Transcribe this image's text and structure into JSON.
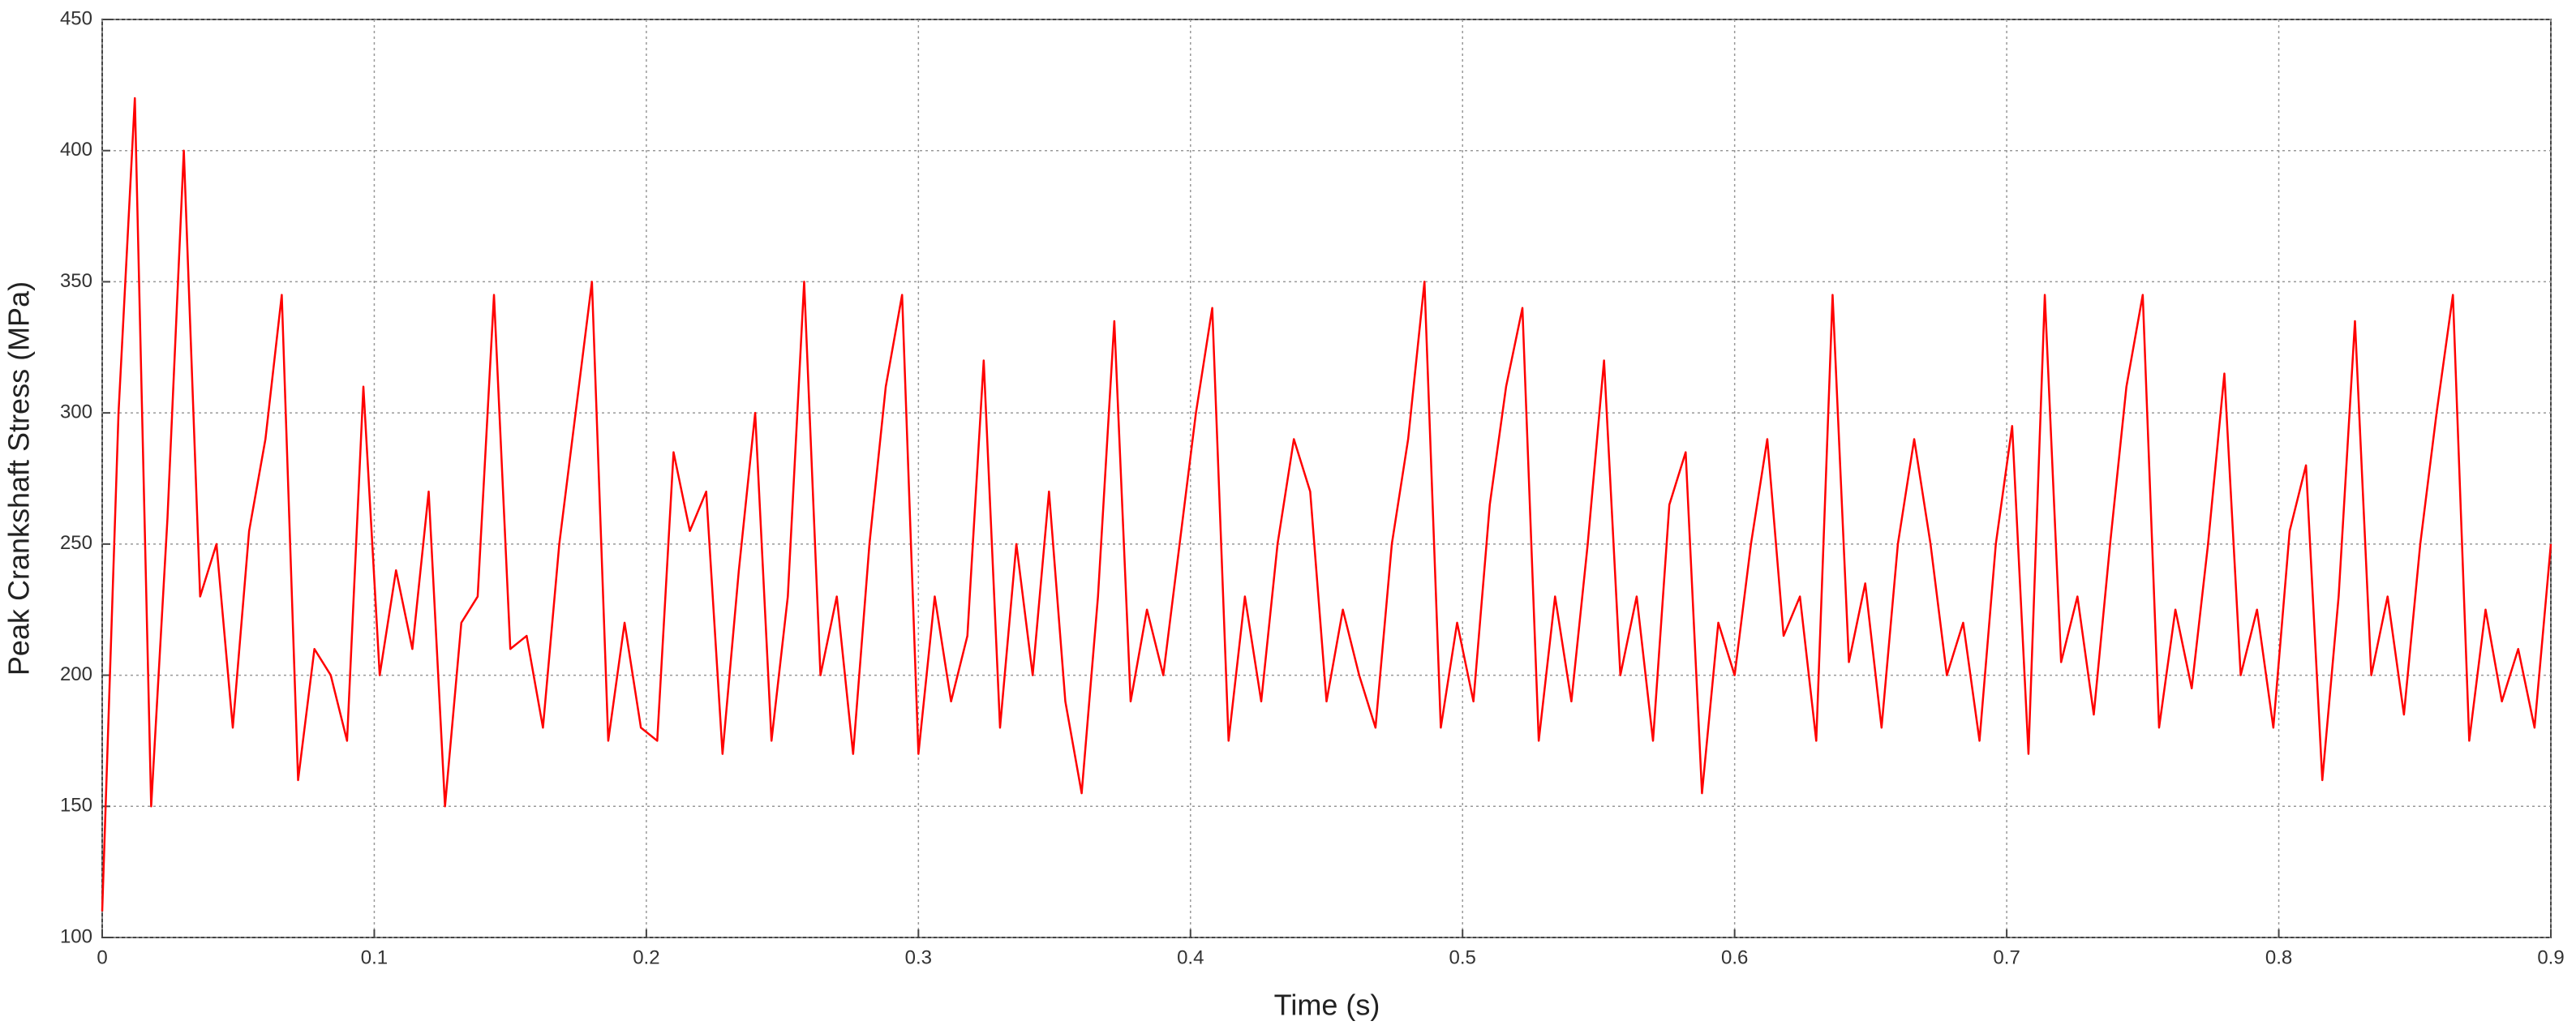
{
  "chart_data": {
    "type": "line",
    "x_label": "Time (s)",
    "y_label": "Peak Crankshaft Stress (MPa)",
    "xlim": [
      0,
      0.9
    ],
    "ylim": [
      100,
      450
    ],
    "xticks": [
      0,
      0.1,
      0.2,
      0.3,
      0.4,
      0.5,
      0.6,
      0.7,
      0.8,
      0.9
    ],
    "yticks": [
      100,
      150,
      200,
      250,
      300,
      350,
      400,
      450
    ],
    "grid": true,
    "series": [
      {
        "color": "#ff0000",
        "x": [
          0,
          0.006,
          0.012,
          0.018,
          0.024,
          0.03,
          0.036,
          0.042,
          0.048,
          0.054,
          0.06,
          0.066,
          0.072,
          0.078,
          0.084,
          0.09,
          0.096,
          0.102,
          0.108,
          0.114,
          0.12,
          0.126,
          0.132,
          0.138,
          0.144,
          0.15,
          0.156,
          0.162,
          0.168,
          0.174,
          0.18,
          0.186,
          0.192,
          0.198,
          0.204,
          0.21,
          0.216,
          0.222,
          0.228,
          0.234,
          0.24,
          0.246,
          0.252,
          0.258,
          0.264,
          0.27,
          0.276,
          0.282,
          0.288,
          0.294,
          0.3,
          0.306,
          0.312,
          0.318,
          0.324,
          0.33,
          0.336,
          0.342,
          0.348,
          0.354,
          0.36,
          0.366,
          0.372,
          0.378,
          0.384,
          0.39,
          0.396,
          0.402,
          0.408,
          0.414,
          0.42,
          0.426,
          0.432,
          0.438,
          0.444,
          0.45,
          0.456,
          0.462,
          0.468,
          0.474,
          0.48,
          0.486,
          0.492,
          0.498,
          0.504,
          0.51,
          0.516,
          0.522,
          0.528,
          0.534,
          0.54,
          0.546,
          0.552,
          0.558,
          0.564,
          0.57,
          0.576,
          0.582,
          0.588,
          0.594,
          0.6,
          0.606,
          0.612,
          0.618,
          0.624,
          0.63,
          0.636,
          0.642,
          0.648,
          0.654,
          0.66,
          0.666,
          0.672,
          0.678,
          0.684,
          0.69,
          0.696,
          0.702,
          0.708,
          0.714,
          0.72,
          0.726,
          0.732,
          0.738,
          0.744,
          0.75,
          0.756,
          0.762,
          0.768,
          0.774,
          0.78,
          0.786,
          0.792,
          0.798,
          0.804,
          0.81,
          0.816,
          0.822,
          0.828,
          0.834,
          0.84,
          0.846,
          0.852,
          0.858,
          0.864,
          0.87,
          0.876,
          0.882,
          0.888,
          0.894,
          0.9
        ],
        "values": [
          110,
          300,
          420,
          150,
          260,
          400,
          230,
          250,
          180,
          255,
          290,
          345,
          160,
          210,
          200,
          175,
          310,
          200,
          240,
          210,
          270,
          150,
          220,
          230,
          345,
          210,
          215,
          180,
          250,
          300,
          350,
          175,
          220,
          180,
          175,
          285,
          255,
          270,
          170,
          240,
          300,
          175,
          230,
          350,
          200,
          230,
          170,
          250,
          310,
          345,
          170,
          230,
          190,
          215,
          320,
          180,
          250,
          200,
          270,
          190,
          155,
          230,
          335,
          190,
          225,
          200,
          250,
          300,
          340,
          175,
          230,
          190,
          250,
          290,
          270,
          190,
          225,
          200,
          180,
          250,
          290,
          350,
          180,
          220,
          190,
          265,
          310,
          340,
          175,
          230,
          190,
          250,
          320,
          200,
          230,
          175,
          265,
          285,
          155,
          220,
          200,
          250,
          290,
          215,
          230,
          175,
          345,
          205,
          235,
          180,
          250,
          290,
          250,
          200,
          220,
          175,
          250,
          295,
          170,
          345,
          205,
          230,
          185,
          250,
          310,
          345,
          180,
          225,
          195,
          250,
          315,
          200,
          225,
          180,
          255,
          280,
          160,
          230,
          335,
          200,
          230,
          185,
          250,
          300,
          345,
          175,
          225,
          190,
          210,
          180,
          250
        ]
      }
    ]
  }
}
